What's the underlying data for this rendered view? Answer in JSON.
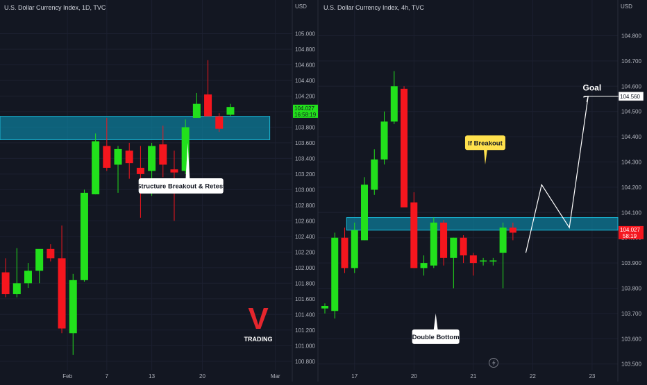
{
  "colors": {
    "background": "#131722",
    "grid": "#1c2030",
    "text": "#b2b5be",
    "up": "#22e01c",
    "down": "#f5161e",
    "zone_fill": "#0b8fb0",
    "zone_stroke": "#19b8d6",
    "label_bg": "#ffffff",
    "callout_bg": "#ffe14d",
    "logo": "#e5262d"
  },
  "chart_data": [
    {
      "type": "candlestick",
      "title": "U.S. Dollar Currency Index, 1D, TVC",
      "unit": "USD",
      "ylim": [
        100.7,
        105.2
      ],
      "y_ticks": [
        "105.000",
        "104.800",
        "104.600",
        "104.400",
        "104.200",
        "104.000",
        "103.800",
        "103.600",
        "103.400",
        "103.200",
        "103.000",
        "102.800",
        "102.600",
        "102.400",
        "102.200",
        "102.000",
        "101.800",
        "101.600",
        "101.400",
        "101.200",
        "101.000",
        "100.800"
      ],
      "x_ticks": [
        {
          "label": "Feb",
          "index": 5.5
        },
        {
          "label": "7",
          "index": 9
        },
        {
          "label": "13",
          "index": 13
        },
        {
          "label": "20",
          "index": 17.5
        },
        {
          "label": "Mar",
          "index": 24
        }
      ],
      "x_range": [
        -0.5,
        25.5
      ],
      "candles": [
        {
          "o": 101.94,
          "h": 102.12,
          "l": 101.62,
          "c": 101.66
        },
        {
          "o": 101.66,
          "h": 102.25,
          "l": 101.62,
          "c": 101.8
        },
        {
          "o": 101.8,
          "h": 102.06,
          "l": 101.74,
          "c": 101.96
        },
        {
          "o": 101.96,
          "h": 102.22,
          "l": 101.8,
          "c": 102.24
        },
        {
          "o": 102.24,
          "h": 102.3,
          "l": 102.08,
          "c": 102.12
        },
        {
          "o": 102.12,
          "h": 102.54,
          "l": 101.16,
          "c": 101.22
        },
        {
          "o": 101.16,
          "h": 101.92,
          "l": 100.88,
          "c": 101.84
        },
        {
          "o": 101.84,
          "h": 103.0,
          "l": 101.82,
          "c": 102.96
        },
        {
          "o": 102.94,
          "h": 103.72,
          "l": 102.94,
          "c": 103.62
        },
        {
          "o": 103.56,
          "h": 103.92,
          "l": 103.24,
          "c": 103.28
        },
        {
          "o": 103.32,
          "h": 103.56,
          "l": 102.96,
          "c": 103.52
        },
        {
          "o": 103.5,
          "h": 103.6,
          "l": 103.14,
          "c": 103.34
        },
        {
          "o": 103.28,
          "h": 103.56,
          "l": 102.64,
          "c": 103.2
        },
        {
          "o": 103.24,
          "h": 103.6,
          "l": 102.92,
          "c": 103.56
        },
        {
          "o": 103.58,
          "h": 103.82,
          "l": 103.16,
          "c": 103.32
        },
        {
          "o": 103.26,
          "h": 103.5,
          "l": 102.6,
          "c": 103.22
        },
        {
          "o": 103.24,
          "h": 103.9,
          "l": 103.2,
          "c": 103.8
        },
        {
          "o": 103.92,
          "h": 104.24,
          "l": 103.92,
          "c": 104.1
        },
        {
          "o": 104.22,
          "h": 104.66,
          "l": 103.96,
          "c": 103.94
        },
        {
          "o": 103.94,
          "h": 103.98,
          "l": 103.74,
          "c": 103.78
        },
        {
          "o": 103.96,
          "h": 104.1,
          "l": 103.94,
          "c": 104.06
        }
      ],
      "zone": {
        "x_start": -0.5,
        "x_end": 23.5,
        "y_low": 103.64,
        "y_high": 103.94
      },
      "annotation": {
        "text": "Structure Breakout & Retest",
        "x": 15.6,
        "y": 103.6
      },
      "price_label": {
        "value": "104.027",
        "timer": "16:58:19"
      }
    },
    {
      "type": "candlestick",
      "title": "U.S. Dollar Currency Index, 4h, TVC",
      "unit": "USD",
      "ylim": [
        103.48,
        104.87
      ],
      "y_ticks": [
        "104.800",
        "104.700",
        "104.600",
        "104.500",
        "104.400",
        "104.300",
        "104.200",
        "104.100",
        "104.000",
        "103.900",
        "103.800",
        "103.700",
        "103.600",
        "103.500"
      ],
      "x_ticks": [
        {
          "label": "17",
          "index": 3
        },
        {
          "label": "20",
          "index": 9
        },
        {
          "label": "21",
          "index": 15
        },
        {
          "label": "22",
          "index": 21
        },
        {
          "label": "23",
          "index": 27
        }
      ],
      "x_range": [
        -0.7,
        29.6
      ],
      "candles": [
        {
          "o": 103.72,
          "h": 103.74,
          "l": 103.7,
          "c": 103.73
        },
        {
          "o": 103.71,
          "h": 104.02,
          "l": 103.68,
          "c": 104.0
        },
        {
          "o": 104.0,
          "h": 104.04,
          "l": 103.86,
          "c": 103.88
        },
        {
          "o": 103.88,
          "h": 104.06,
          "l": 103.86,
          "c": 104.03
        },
        {
          "o": 103.99,
          "h": 104.24,
          "l": 103.99,
          "c": 104.21
        },
        {
          "o": 104.19,
          "h": 104.35,
          "l": 104.17,
          "c": 104.31
        },
        {
          "o": 104.31,
          "h": 104.5,
          "l": 104.29,
          "c": 104.46
        },
        {
          "o": 104.46,
          "h": 104.66,
          "l": 104.45,
          "c": 104.6
        },
        {
          "o": 104.59,
          "h": 104.6,
          "l": 104.12,
          "c": 104.12
        },
        {
          "o": 104.14,
          "h": 104.18,
          "l": 103.88,
          "c": 103.88
        },
        {
          "o": 103.88,
          "h": 103.93,
          "l": 103.85,
          "c": 103.9
        },
        {
          "o": 103.89,
          "h": 104.08,
          "l": 103.88,
          "c": 104.06
        },
        {
          "o": 104.06,
          "h": 104.07,
          "l": 103.89,
          "c": 103.92
        },
        {
          "o": 103.92,
          "h": 104.0,
          "l": 103.8,
          "c": 104.0
        },
        {
          "o": 104.0,
          "h": 104.01,
          "l": 103.9,
          "c": 103.93
        },
        {
          "o": 103.93,
          "h": 103.94,
          "l": 103.85,
          "c": 103.9
        },
        {
          "o": 103.91,
          "h": 103.92,
          "l": 103.89,
          "c": 103.91
        },
        {
          "o": 103.91,
          "h": 103.92,
          "l": 103.89,
          "c": 103.91
        },
        {
          "o": 103.94,
          "h": 104.06,
          "l": 103.8,
          "c": 104.04
        },
        {
          "o": 104.04,
          "h": 104.06,
          "l": 103.99,
          "c": 104.02
        }
      ],
      "zone": {
        "x_start": 2.2,
        "x_end": 29.6,
        "y_low": 104.03,
        "y_high": 104.08
      },
      "annotations": [
        {
          "text": "Double Bottom",
          "x": 11.2,
          "y": 103.7
        },
        {
          "text": "If Breakout",
          "x": 16.2,
          "y": 104.35
        },
        {
          "text": "Goal",
          "x": 26.9,
          "y": 104.58
        }
      ],
      "projection": [
        {
          "x": 20.3,
          "y": 103.94
        },
        {
          "x": 21.9,
          "y": 104.21
        },
        {
          "x": 24.7,
          "y": 104.04
        },
        {
          "x": 26.6,
          "y": 104.56
        }
      ],
      "goal_level": {
        "value": "104.560",
        "y": 104.56
      },
      "price_label": {
        "value": "104.027",
        "timer": "58:19"
      }
    }
  ],
  "watermark": {
    "letter": "V",
    "caption": "TRADING"
  }
}
